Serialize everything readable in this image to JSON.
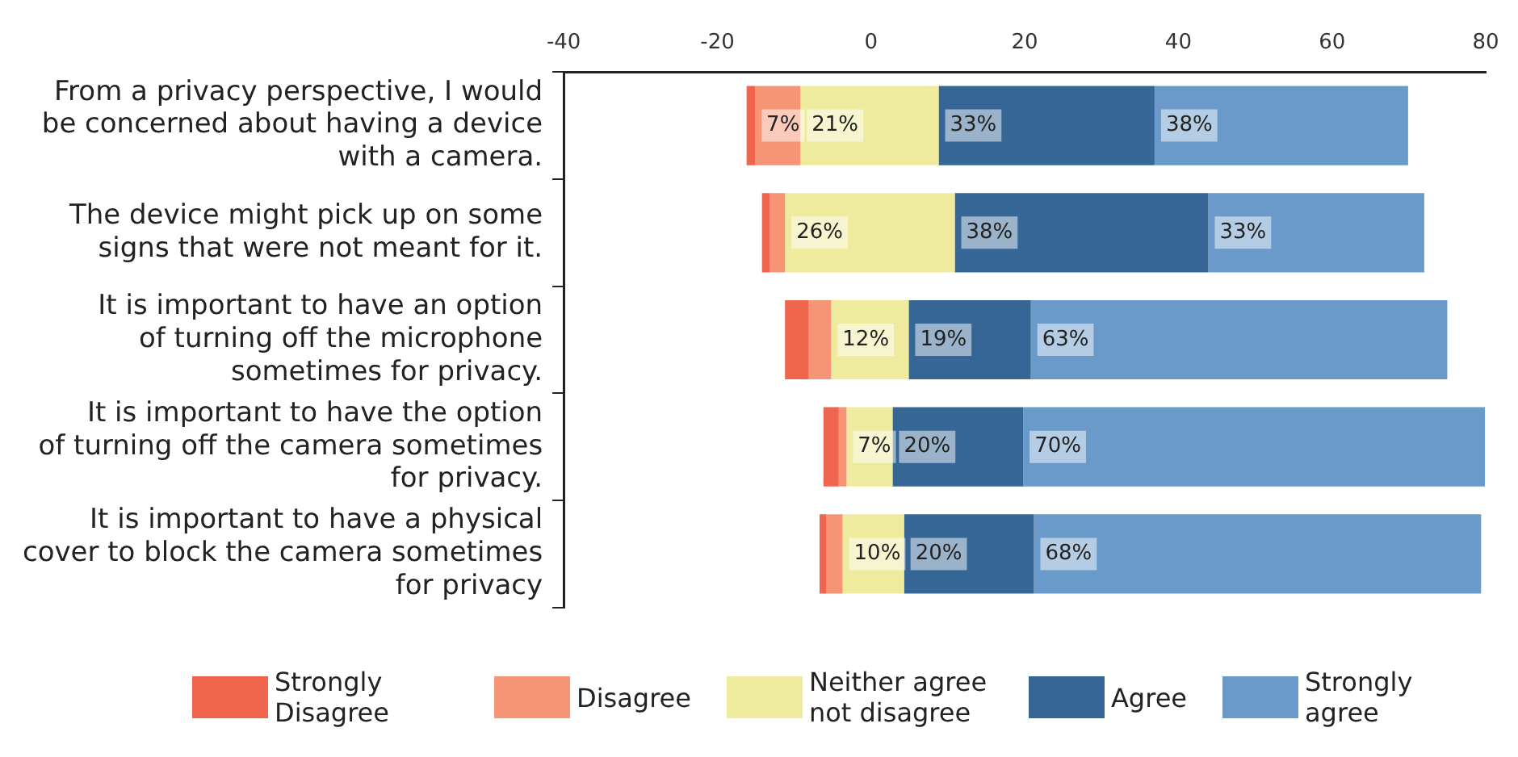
{
  "chart_data": {
    "type": "bar",
    "orientation": "horizontal",
    "categories": [
      "From a privacy perspective, I would be concerned about having a device with a camera.",
      "The device might pick up on some signs that were not meant for it.",
      "It is important to have an option of turning off the microphone sometimes for privacy.",
      "It is important to have the option of turning off the camera sometimes for privacy.",
      "It is important to have a physical cover to block the camera sometimes for privacy"
    ],
    "series": [
      {
        "name": "Strongly Disagree",
        "color": "#f0654e",
        "base": [
          -16.2,
          -14.2,
          -11.2,
          -6.2,
          -6.7
        ],
        "values": [
          1.1,
          1.0,
          3.1,
          2.0,
          0.9
        ]
      },
      {
        "name": "Disagree",
        "color": "#f59576",
        "base": [
          -15.1,
          -13.2,
          -8.1,
          -4.2,
          -5.8
        ],
        "values": [
          5.9,
          2.0,
          2.9,
          1.0,
          2.1
        ]
      },
      {
        "name": "Neither agree not disagree",
        "color": "#efeb9e",
        "base": [
          -9.2,
          -11.2,
          -5.2,
          -3.2,
          -3.7
        ],
        "values": [
          18.0,
          22.1,
          10.1,
          6.0,
          8.0
        ]
      },
      {
        "name": "Agree",
        "color": "#366695",
        "base": [
          8.8,
          10.9,
          4.9,
          2.8,
          4.3
        ],
        "values": [
          28.1,
          33.0,
          15.9,
          17.0,
          16.9
        ]
      },
      {
        "name": "Strongly agree",
        "color": "#6a9ac9",
        "base": [
          36.9,
          43.9,
          20.8,
          19.8,
          21.2
        ],
        "values": [
          33.0,
          28.1,
          54.2,
          60.1,
          58.2
        ]
      }
    ],
    "annotations": [
      {
        "text": "7%",
        "x": -15.1,
        "y": "From a privacy perspective, I would be concerned about having a device with a camera."
      },
      {
        "text": "21%",
        "x": -9.2,
        "y": "From a privacy perspective, I would be concerned about having a device with a camera."
      },
      {
        "text": "33%",
        "x": 8.8,
        "y": "From a privacy perspective, I would be concerned about having a device with a camera."
      },
      {
        "text": "38%",
        "x": 36.9,
        "y": "From a privacy perspective, I would be concerned about having a device with a camera."
      },
      {
        "text": "26%",
        "x": -11.2,
        "y": "The device might pick up on some signs that were not meant for it."
      },
      {
        "text": "38%",
        "x": 10.9,
        "y": "The device might pick up on some signs that were not meant for it."
      },
      {
        "text": "33%",
        "x": 43.9,
        "y": "The device might pick up on some signs that were not meant for it."
      },
      {
        "text": "12%",
        "x": -5.2,
        "y": "It is important to have an option of turning off the microphone sometimes for privacy."
      },
      {
        "text": "19%",
        "x": 4.9,
        "y": "It is important to have an option of turning off the microphone sometimes for privacy."
      },
      {
        "text": "63%",
        "x": 20.8,
        "y": "It is important to have an option of turning off the microphone sometimes for privacy."
      },
      {
        "text": "7%",
        "x": -3.2,
        "y": "It is important to have the option of turning off the camera sometimes for privacy."
      },
      {
        "text": "20%",
        "x": 2.8,
        "y": "It is important to have the option of turning off the camera sometimes for privacy."
      },
      {
        "text": "70%",
        "x": 19.8,
        "y": "It is important to have the option of turning off the camera sometimes for privacy."
      },
      {
        "text": "10%",
        "x": -3.7,
        "y": "It is important to have a physical cover to block the camera sometimes for privacy"
      },
      {
        "text": "20%",
        "x": 4.3,
        "y": "It is important to have a physical cover to block the camera sometimes for privacy"
      },
      {
        "text": "68%",
        "x": 21.2,
        "y": "It is important to have a physical cover to block the camera sometimes for privacy"
      }
    ],
    "xlim": [
      -40,
      80
    ],
    "xticks": [
      -40,
      -20,
      0,
      20,
      40,
      60,
      80
    ],
    "legend": "bottom"
  }
}
